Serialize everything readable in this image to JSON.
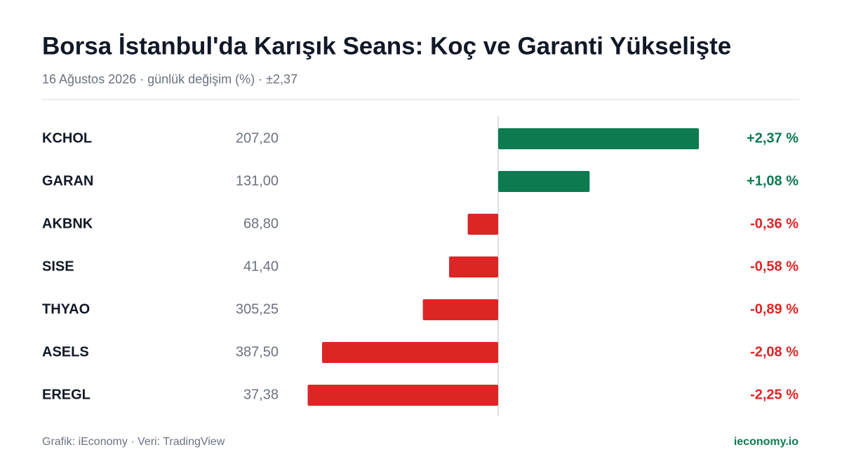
{
  "chart_data": {
    "type": "diverging-bar",
    "title": "Borsa İstanbul'da Karışık Seans: Koç ve Garanti Yükselişte",
    "subtitle": "16 Ağustos 2026 · günlük değişim (%) · ±2,37",
    "categories": [
      "KCHOL",
      "GARAN",
      "AKBNK",
      "SISE",
      "THYAO",
      "ASELS",
      "EREGL"
    ],
    "prices": [
      "207,20",
      "131,00",
      "68,80",
      "41,40",
      "305,25",
      "387,50",
      "37,38"
    ],
    "values": [
      2.37,
      1.08,
      -0.36,
      -0.58,
      -0.89,
      -2.08,
      -2.25
    ],
    "value_labels": [
      "+2,37 %",
      "+1,08 %",
      "-0,36 %",
      "-0,58 %",
      "-0,89 %",
      "-2,08 %",
      "-2,25 %"
    ],
    "xlim": [
      -2.37,
      2.37
    ],
    "positive_color": "#0e7a4f",
    "negative_color": "#dc2626",
    "footer": "Grafik: iEconomy · Veri: TradingView",
    "brand": "ieconomy.io"
  }
}
